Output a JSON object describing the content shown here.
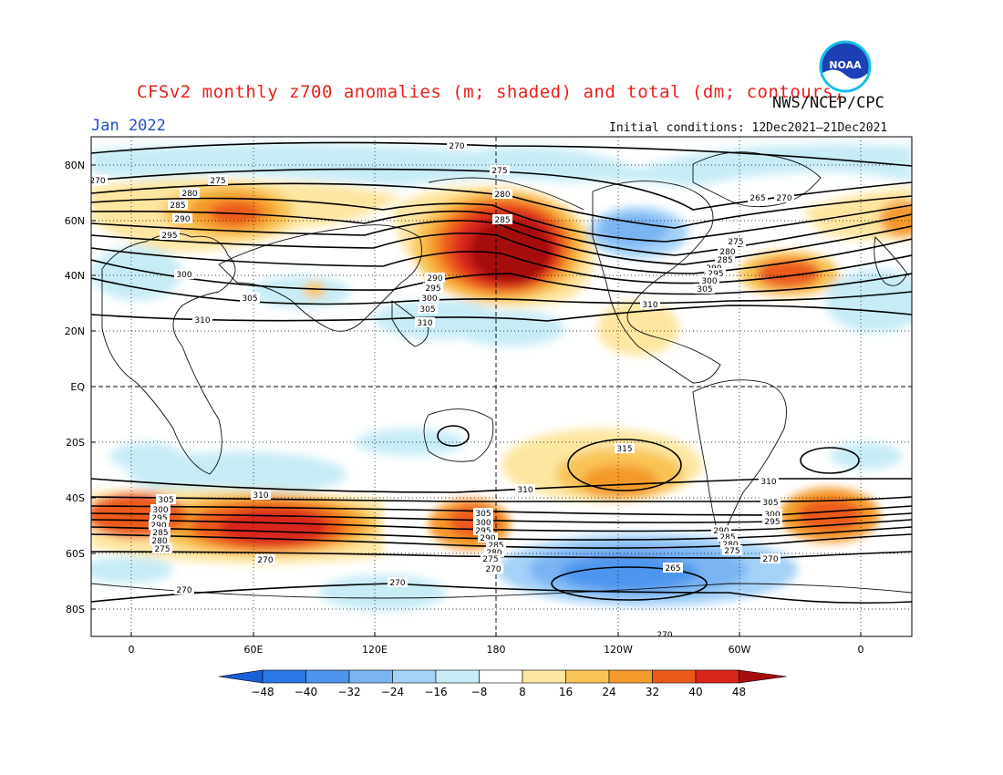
{
  "header": {
    "title": "CFSv2 monthly z700 anomalies (m; shaded) and total (dm; contours)",
    "agency": "NWS/NCEP/CPC",
    "month": "Jan 2022",
    "initial_conditions": "Initial conditions: 12Dec2021–21Dec2021",
    "logo_text": "NOAA"
  },
  "map": {
    "projection": "cylindrical equidistant",
    "lon_range": [
      -20,
      340
    ],
    "lat_range": [
      -90,
      90
    ],
    "lat_ticks": [
      "80N",
      "60N",
      "40N",
      "20N",
      "EQ",
      "20S",
      "40S",
      "60S",
      "80S"
    ],
    "lon_ticks": [
      "0",
      "60E",
      "120E",
      "180",
      "120W",
      "60W",
      "0"
    ],
    "grid": "dotted",
    "contour_labels": [
      "270",
      "275",
      "280",
      "285",
      "290",
      "295",
      "300",
      "305",
      "310",
      "315",
      "265"
    ]
  },
  "colorbar": {
    "ticks": [
      "−48",
      "−40",
      "−32",
      "−24",
      "−16",
      "−8",
      "8",
      "16",
      "24",
      "32",
      "40",
      "48"
    ],
    "colors": [
      "#1a5fd6",
      "#2a78e6",
      "#4d95ee",
      "#7ab4f3",
      "#a4d2f8",
      "#c7ecf6",
      "#ffffff",
      "#fde6a0",
      "#f9c455",
      "#f59a2c",
      "#ec5a1b",
      "#d9251a",
      "#a60e0e"
    ]
  }
}
